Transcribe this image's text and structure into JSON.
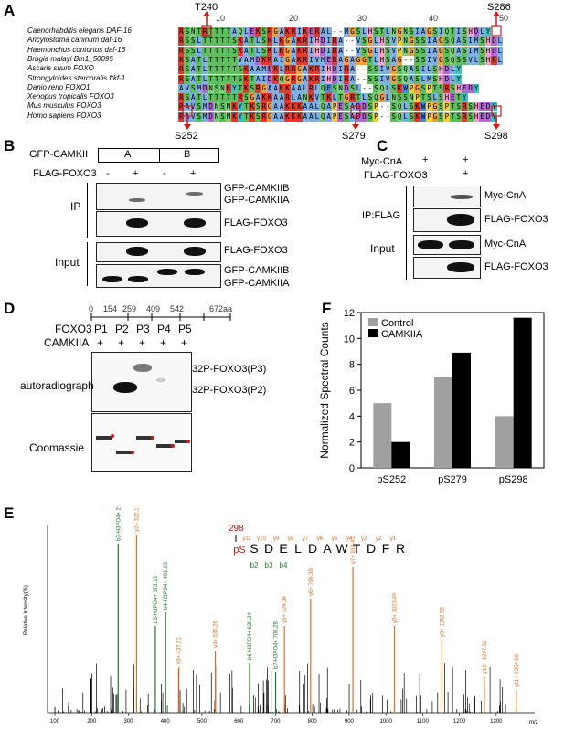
{
  "panels": {
    "A": "A",
    "B": "B",
    "C": "C",
    "D": "D",
    "E": "E",
    "F": "F"
  },
  "panelA": {
    "top_sites": [
      "T240",
      "S286"
    ],
    "bottom_sites": [
      "S252",
      "S279",
      "S298"
    ],
    "ruler": [
      "10",
      "20",
      "30",
      "40",
      "50"
    ],
    "species": [
      "Caenorhabditis elegans DAF-16",
      "Ancylostoma caninum daf-16",
      "Haemonchus contortus daf-16",
      "Brugia malayi Bm1_50095",
      "Ascaris suum FOXO",
      "Strongyloides stercoralis ftkf-1",
      "Danio rerio FOXO1",
      "Xenopus tropicalis FOXO3",
      "Mus musculus FOXO3",
      "Homo sapiens FOXO3"
    ],
    "sequences": [
      "RSNTRTTTTAQLEKSRGAKRIKERAL--MGSLHSTLNGNSIAGSIQTISHDLY",
      "RSSLTTTTTSKATLSKLKGAKRIHDIRA--VSGLHSVPNGSSIAGSQASIMSHDLY",
      "RSSLTTTTTSKATLSKLKGAKRIHDIRA--VSGLHSVPNGSSIAGSQASIMSHDLY",
      "RSATLTTTTTVAMDKRAIGAKRIVMERAGAGGTLHSAG--SSIVGSQSSVLSHRLY",
      "RSATLTTTTTSKAAMEKLRRGAKRIHDIRA--SSIVGSQASILSHDLY",
      "RSATLTTTTTSKTAIDKQGRGAKRIHDIRA--SSIVGSQASLMSHDLY",
      "AVSMDNSNKYTKSRGAAKKAALRLQFSNDSL--SQLSKWPGSPTSRSHEDY",
      "RSATLTTTTTRSGAKKAARLANKVTKLTGRTLSQGLNSSNPTSLSHETY",
      "RAVSMDNSNKYTKSRGAAKKKAALQAPESADDSP--SQLSKWPGSPTSRSHEDY",
      "RAVSMDNSNKYTKSRGAAKKKAALQAPESADDSP--SQLSKWPGSPTSRSHEDY"
    ]
  },
  "panelB": {
    "header_left": "GFP-CAMKII",
    "groups": [
      "A",
      "B"
    ],
    "flag_label": "FLAG-FOXO3",
    "flag_signs": [
      "-",
      "+",
      "-",
      "+"
    ],
    "ip_label": "IP",
    "input_label": "Input",
    "blot_labels": [
      "GFP-CAMKIIB",
      "GFP-CAMKIIA",
      "FLAG-FOXO3",
      "FLAG-FOXO3",
      "GFP-CAMKIIB",
      "GFP-CAMKIIA"
    ]
  },
  "panelC": {
    "row1_label": "Myc-CnA",
    "row1_signs": [
      "+",
      "+"
    ],
    "row2_label": "FLAG-FOXO3",
    "row2_signs": [
      "-",
      "+"
    ],
    "ip_label": "IP:FLAG",
    "input_label": "Input",
    "blot_labels": [
      "Myc-CnA",
      "FLAG-FOXO3",
      "Myc-CnA",
      "FLAG-FOXO3"
    ]
  },
  "panelD": {
    "ruler": [
      "0",
      "154",
      "259",
      "409",
      "542",
      "672aa"
    ],
    "foxo_label": "FOXO3",
    "fragments": [
      "P1",
      "P2",
      "P3",
      "P4",
      "P5"
    ],
    "camk_label": "CAMKIIA",
    "camk_signs": [
      "+",
      "+",
      "+",
      "+",
      "+"
    ],
    "autorad_label": "autoradiograph",
    "coomassie_label": "Coomassie",
    "band_labels": [
      "32P-FOXO3(P3)",
      "32P-FOXO3(P2)"
    ]
  },
  "panelE": {
    "site": "298",
    "peptide": [
      "pS",
      "S",
      "D",
      "E",
      "L",
      "D",
      "A",
      "W",
      "T",
      "D",
      "F",
      "R"
    ],
    "y_ions": [
      "y11",
      "y10",
      "y9",
      "y8",
      "y7",
      "y6",
      "y5",
      "y4",
      "y3",
      "y2",
      "y1"
    ],
    "b_ions": [
      "b2",
      "b3",
      "b4"
    ],
    "ylabel": "Relative Intensity(%)",
    "xlabel": "m/z",
    "peak_labels": [
      "y2+ 322.19",
      "b3-H3PO4+ 272.09",
      "b3-H3PO4+ 373.13",
      "b4-H3PO4+ 401.13",
      "y3+ 437.21",
      "y4+ 536.26",
      "b6-H3PO4+ 629.24",
      "b7-H3PO4+ 700.28",
      "y5+ 724.34",
      "y6+ 795.38",
      "y7+ 910.41",
      "y8+ 1023.49",
      "y9+ 1152.53",
      "y10+ 1267.56",
      "y11+ 1354.60"
    ]
  },
  "chart_data": {
    "type": "bar",
    "categories": [
      "pS252",
      "pS279",
      "pS298"
    ],
    "series": [
      {
        "name": "Control",
        "values": [
          5,
          7,
          4
        ],
        "color": "#a0a0a0"
      },
      {
        "name": "CAMKIIA",
        "values": [
          2,
          8.9,
          11.6
        ],
        "color": "#000000"
      }
    ],
    "xlabel": "",
    "ylabel": "Normalized Spectral Counts",
    "ylim": [
      0,
      12
    ],
    "yticks": [
      0,
      2,
      4,
      6,
      8,
      10,
      12
    ],
    "legend": "top-left"
  }
}
